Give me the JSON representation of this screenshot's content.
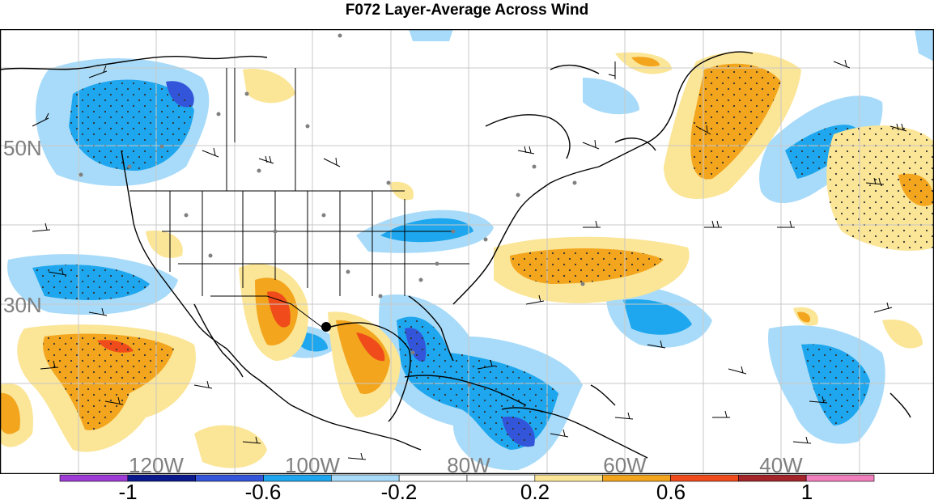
{
  "title": "F072 Layer-Average Across Wind",
  "map": {
    "lon_labels": [
      "120W",
      "100W",
      "80W",
      "60W",
      "40W"
    ],
    "lat_labels": [
      "50N",
      "30N"
    ]
  },
  "colorbar": {
    "labels": [
      "-1",
      "-0.6",
      "-0.2",
      "0.2",
      "0.6",
      "1"
    ],
    "colors": [
      "#9e3bd6",
      "#0a1a8c",
      "#3355d9",
      "#1ea7ee",
      "#a8dbf9",
      "#ffffff",
      "#ffffff",
      "#fbe596",
      "#f3a51d",
      "#ef4b1b",
      "#a3252a",
      "#f27fbd"
    ]
  }
}
